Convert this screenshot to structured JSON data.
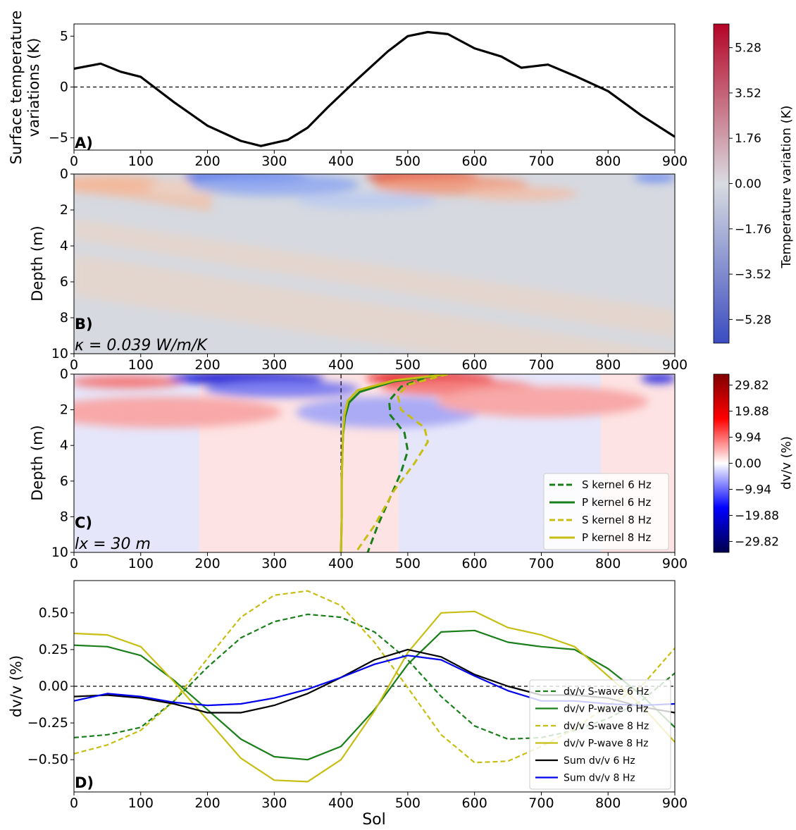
{
  "chart_data": [
    {
      "panel_label": "A)",
      "type": "line",
      "ylabel": "Surface temperature\nvariations (K)",
      "xlim": [
        0,
        900
      ],
      "ylim": [
        -6.2,
        6.2
      ],
      "xticks": [
        "0",
        "100",
        "200",
        "300",
        "400",
        "500",
        "600",
        "700",
        "800",
        "900"
      ],
      "yticks": [
        "5",
        "0",
        "−5"
      ],
      "reference_line": {
        "y": 0,
        "style": "dashed"
      },
      "series": [
        {
          "color": "#000000",
          "x": [
            0,
            40,
            70,
            100,
            150,
            200,
            250,
            280,
            320,
            350,
            380,
            420,
            470,
            500,
            530,
            560,
            600,
            640,
            670,
            710,
            750,
            800,
            850,
            900
          ],
          "y": [
            1.8,
            2.3,
            1.5,
            1.0,
            -1.5,
            -3.8,
            -5.3,
            -5.8,
            -5.2,
            -4.0,
            -2.0,
            0.5,
            3.5,
            5.0,
            5.4,
            5.2,
            3.8,
            3.0,
            1.9,
            2.2,
            1.1,
            -0.4,
            -2.8,
            -4.9
          ]
        }
      ]
    },
    {
      "panel_label": "B)",
      "annotation": "κ = 0.039 W/m/K",
      "type": "heatmap",
      "ylabel": "Depth (m)",
      "xlim": [
        0,
        900
      ],
      "ylim": [
        10,
        0
      ],
      "xticks": [
        "0",
        "100",
        "200",
        "300",
        "400",
        "500",
        "600",
        "700",
        "800",
        "900"
      ],
      "yticks": [
        "0",
        "2",
        "4",
        "6",
        "8",
        "10"
      ],
      "colorbar": {
        "label": "Temperature variation (K)",
        "ticks": [
          "5.28",
          "3.52",
          "1.76",
          "0.00",
          "−1.76",
          "−3.52",
          "−5.28"
        ],
        "range": [
          -6.2,
          6.2
        ],
        "colors": [
          "#3b4cc0",
          "#d9dce1",
          "#b40426"
        ]
      }
    },
    {
      "panel_label": "C)",
      "annotation": "lx = 30 m",
      "type": "heatmap",
      "ylabel": "Depth (m)",
      "xlim": [
        0,
        900
      ],
      "ylim": [
        10,
        0
      ],
      "xticks": [
        "0",
        "100",
        "200",
        "300",
        "400",
        "500",
        "600",
        "700",
        "800",
        "900"
      ],
      "yticks": [
        "0",
        "2",
        "4",
        "6",
        "8",
        "10"
      ],
      "vertical_line": {
        "x": 400,
        "style": "dashed"
      },
      "colorbar": {
        "label": "dv/v (%)",
        "ticks": [
          "29.82",
          "19.88",
          "9.94",
          "0.00",
          "−9.94",
          "−19.88",
          "−29.82"
        ],
        "range": [
          -34,
          34
        ],
        "colors": [
          "#00004c",
          "#ffffff",
          "#800000"
        ]
      },
      "kernels": [
        {
          "name": "S kernel 6 Hz",
          "color": "#1a7f1a",
          "dashed": true,
          "x": [
            540,
            490,
            472,
            474,
            495,
            500,
            490,
            475,
            455,
            440
          ],
          "depth": [
            0,
            0.7,
            1.5,
            2.3,
            3.3,
            4.3,
            5.5,
            6.8,
            8.5,
            10
          ]
        },
        {
          "name": "P kernel 6 Hz",
          "color": "#1a7f1a",
          "dashed": false,
          "x": [
            560,
            480,
            428,
            412,
            406,
            403,
            402,
            401,
            401,
            400
          ],
          "depth": [
            0,
            0.4,
            1.0,
            1.6,
            2.4,
            3.4,
            4.5,
            6.0,
            8.0,
            10
          ]
        },
        {
          "name": "S kernel 8 Hz",
          "color": "#c7be14",
          "dashed": true,
          "x": [
            560,
            500,
            485,
            490,
            525,
            530,
            510,
            480,
            450,
            422
          ],
          "depth": [
            0,
            0.6,
            1.2,
            2.0,
            3.0,
            3.8,
            5.0,
            6.5,
            8.5,
            10
          ]
        },
        {
          "name": "P kernel 8 Hz",
          "color": "#c7be14",
          "dashed": false,
          "x": [
            560,
            480,
            425,
            410,
            405,
            403,
            402,
            401,
            401,
            400
          ],
          "depth": [
            0,
            0.35,
            0.9,
            1.5,
            2.3,
            3.3,
            4.5,
            6.0,
            8.0,
            10
          ]
        }
      ]
    },
    {
      "panel_label": "D)",
      "type": "line",
      "xlabel": "Sol",
      "ylabel": "dv/v (%)",
      "xlim": [
        0,
        900
      ],
      "ylim": [
        -0.72,
        0.72
      ],
      "xticks": [
        "0",
        "100",
        "200",
        "300",
        "400",
        "500",
        "600",
        "700",
        "800",
        "900"
      ],
      "yticks": [
        "0.50",
        "0.25",
        "0.00",
        "−0.25",
        "−0.50"
      ],
      "yticks_values": [
        0.5,
        0.25,
        0,
        -0.25,
        -0.5
      ],
      "reference_line": {
        "y": 0,
        "style": "dashed"
      },
      "x": [
        0,
        50,
        100,
        150,
        200,
        250,
        300,
        350,
        400,
        450,
        500,
        550,
        600,
        650,
        700,
        750,
        800,
        850,
        900
      ],
      "series": [
        {
          "name": "dv/v S-wave 6 Hz",
          "color": "#1a7f1a",
          "dashed": true,
          "values": [
            -0.35,
            -0.33,
            -0.28,
            -0.1,
            0.13,
            0.33,
            0.44,
            0.49,
            0.47,
            0.37,
            0.18,
            -0.07,
            -0.27,
            -0.36,
            -0.35,
            -0.3,
            -0.22,
            -0.1,
            0.09
          ]
        },
        {
          "name": "dv/v P-wave 6 Hz",
          "color": "#1a7f1a",
          "dashed": false,
          "values": [
            0.28,
            0.27,
            0.21,
            0.04,
            -0.16,
            -0.36,
            -0.48,
            -0.5,
            -0.41,
            -0.16,
            0.15,
            0.37,
            0.38,
            0.3,
            0.27,
            0.25,
            0.12,
            -0.06,
            -0.28
          ]
        },
        {
          "name": "dv/v S-wave 8 Hz",
          "color": "#c7be14",
          "dashed": true,
          "values": [
            -0.46,
            -0.4,
            -0.3,
            -0.1,
            0.19,
            0.47,
            0.62,
            0.65,
            0.55,
            0.3,
            -0.01,
            -0.33,
            -0.52,
            -0.51,
            -0.41,
            -0.29,
            -0.13,
            0.0,
            0.26
          ]
        },
        {
          "name": "dv/v P-wave 8 Hz",
          "color": "#c7be14",
          "dashed": false,
          "values": [
            0.36,
            0.35,
            0.27,
            0.03,
            -0.23,
            -0.49,
            -0.64,
            -0.65,
            -0.5,
            -0.17,
            0.23,
            0.5,
            0.51,
            0.4,
            0.35,
            0.27,
            0.07,
            -0.13,
            -0.38
          ]
        },
        {
          "name": "Sum dv/v 6 Hz",
          "color": "#000000",
          "dashed": false,
          "values": [
            -0.07,
            -0.06,
            -0.08,
            -0.12,
            -0.18,
            -0.18,
            -0.13,
            -0.05,
            0.06,
            0.18,
            0.25,
            0.2,
            0.08,
            0.0,
            -0.06,
            -0.06,
            -0.08,
            -0.14,
            -0.18
          ]
        },
        {
          "name": "Sum dv/v 8 Hz",
          "color": "#0000ee",
          "dashed": false,
          "values": [
            -0.1,
            -0.05,
            -0.07,
            -0.11,
            -0.13,
            -0.12,
            -0.08,
            -0.02,
            0.06,
            0.15,
            0.21,
            0.18,
            0.07,
            -0.03,
            -0.1,
            -0.1,
            -0.12,
            -0.13,
            -0.12
          ]
        }
      ]
    }
  ]
}
